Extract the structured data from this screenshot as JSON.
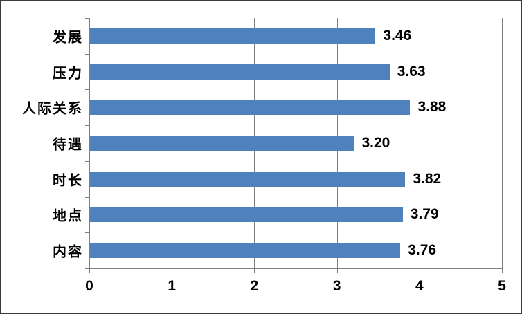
{
  "chart_data": {
    "type": "bar",
    "orientation": "horizontal",
    "title": "",
    "xlabel": "",
    "ylabel": "",
    "categories": [
      "发展",
      "压力",
      "人际关系",
      "待遇",
      "时长",
      "地点",
      "内容"
    ],
    "values": [
      3.46,
      3.63,
      3.88,
      3.2,
      3.82,
      3.79,
      3.76
    ],
    "value_labels": [
      "3.46",
      "3.63",
      "3.88",
      "3.20",
      "3.82",
      "3.79",
      "3.76"
    ],
    "xlim": [
      0,
      5
    ],
    "x_ticks": [
      "0",
      "1",
      "2",
      "3",
      "4",
      "5"
    ],
    "grid": "vertical-gridlines-at-integers",
    "legend": "none",
    "colors": {
      "bar": "#4F81BD",
      "grid": "#808080",
      "axis": "#808080",
      "text": "#000000",
      "frame_border": "#3A3A3A",
      "background": "#FFFFFF"
    }
  }
}
